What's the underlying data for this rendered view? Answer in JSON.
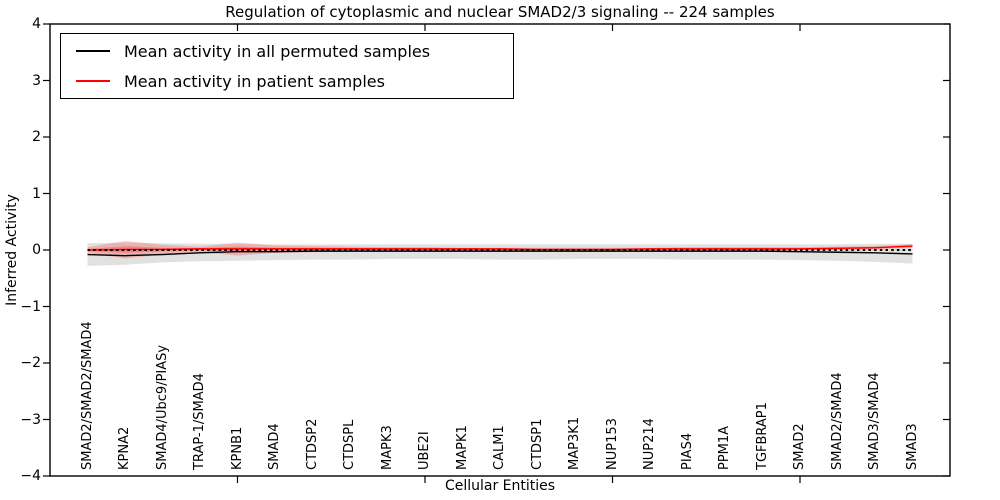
{
  "legend": {
    "items": [
      {
        "label": "Mean activity in all permuted samples",
        "color": "#000000"
      },
      {
        "label": "Mean activity in patient samples",
        "color": "#ff0000"
      }
    ]
  },
  "chart_data": {
    "type": "line",
    "title": "Regulation of cytoplasmic and nuclear SMAD2/3 signaling -- 224 samples",
    "xlabel": "Cellular Entities",
    "ylabel": "Inferred Activity",
    "ylim": [
      -4,
      4
    ],
    "yticks": [
      4,
      3,
      2,
      1,
      0,
      -1,
      -2,
      -3,
      -4
    ],
    "xtick_marks": [
      5,
      10,
      15,
      20
    ],
    "grid": false,
    "legend_position": "upper left",
    "categories": [
      "SMAD2/SMAD2/SMAD4",
      "KPNA2",
      "SMAD4/Ubc9/PIASy",
      "TRAP-1/SMAD4",
      "KPNB1",
      "SMAD4",
      "CTDSP2",
      "CTDSPL",
      "MAPK3",
      "UBE2I",
      "MAPK1",
      "CALM1",
      "CTDSP1",
      "MAP3K1",
      "NUP153",
      "NUP214",
      "PIAS4",
      "PPM1A",
      "TGFBRAP1",
      "SMAD2",
      "SMAD2/SMAD4",
      "SMAD3/SMAD4",
      "SMAD3"
    ],
    "series": [
      {
        "name": "Mean activity in all permuted samples",
        "color": "#000000",
        "style": "solid",
        "values": [
          -0.08,
          -0.1,
          -0.08,
          -0.05,
          -0.03,
          -0.03,
          -0.02,
          -0.02,
          -0.02,
          -0.02,
          -0.02,
          -0.02,
          -0.02,
          -0.02,
          -0.02,
          -0.02,
          -0.02,
          -0.02,
          -0.02,
          -0.03,
          -0.04,
          -0.05,
          -0.07
        ]
      },
      {
        "name": "Mean activity in patient samples",
        "color": "#ff0000",
        "style": "solid",
        "values": [
          0.0,
          0.01,
          0.01,
          0.02,
          0.02,
          0.02,
          0.02,
          0.02,
          0.02,
          0.02,
          0.02,
          0.02,
          0.01,
          0.01,
          0.01,
          0.02,
          0.02,
          0.02,
          0.02,
          0.02,
          0.03,
          0.04,
          0.07
        ]
      }
    ],
    "bands": [
      {
        "series": "Mean activity in all permuted samples",
        "color": "#9a9a9a",
        "opacity": 0.3,
        "upper": [
          0.12,
          0.13,
          0.12,
          0.11,
          0.11,
          0.1,
          0.1,
          0.1,
          0.1,
          0.1,
          0.1,
          0.1,
          0.1,
          0.1,
          0.1,
          0.1,
          0.1,
          0.1,
          0.1,
          0.1,
          0.1,
          0.11,
          0.11
        ],
        "lower": [
          -0.28,
          -0.26,
          -0.22,
          -0.2,
          -0.19,
          -0.18,
          -0.17,
          -0.17,
          -0.16,
          -0.16,
          -0.16,
          -0.17,
          -0.17,
          -0.16,
          -0.16,
          -0.16,
          -0.17,
          -0.17,
          -0.17,
          -0.18,
          -0.19,
          -0.21,
          -0.24
        ]
      },
      {
        "series": "Mean activity in patient samples",
        "color": "#ff0000",
        "opacity": 0.2,
        "upper": [
          0.05,
          0.16,
          0.09,
          0.06,
          0.13,
          0.08,
          0.07,
          0.06,
          0.05,
          0.05,
          0.04,
          0.04,
          0.04,
          0.04,
          0.04,
          0.04,
          0.05,
          0.05,
          0.05,
          0.05,
          0.06,
          0.07,
          0.1
        ],
        "lower": [
          -0.05,
          -0.15,
          -0.08,
          -0.04,
          -0.1,
          -0.05,
          -0.04,
          -0.03,
          -0.02,
          -0.02,
          -0.02,
          -0.01,
          -0.01,
          -0.01,
          -0.01,
          -0.01,
          -0.01,
          -0.01,
          -0.01,
          -0.01,
          0.0,
          0.01,
          0.04
        ]
      }
    ],
    "reference_line": {
      "y": 0,
      "color": "#000000",
      "style": "dotted"
    }
  }
}
